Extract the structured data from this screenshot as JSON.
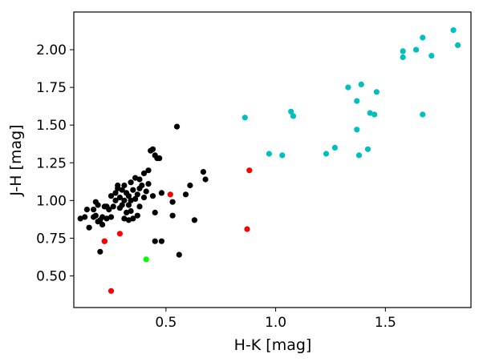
{
  "chart_data": {
    "type": "scatter",
    "title": "",
    "xlabel": "H-K [mag]",
    "ylabel": "J-H [mag]",
    "xlim": [
      0.08,
      1.89
    ],
    "ylim": [
      0.29,
      2.25
    ],
    "xticks": [
      0.5,
      1.0,
      1.5
    ],
    "xtick_labels": [
      "0.5",
      "1.0",
      "1.5"
    ],
    "yticks": [
      0.5,
      0.75,
      1.0,
      1.25,
      1.5,
      1.75,
      2.0
    ],
    "ytick_labels": [
      "0.50",
      "0.75",
      "1.00",
      "1.25",
      "1.50",
      "1.75",
      "2.00"
    ],
    "grid": false,
    "legend": "none",
    "series": [
      {
        "color": "#000000",
        "points": [
          [
            0.11,
            0.88
          ],
          [
            0.13,
            0.89
          ],
          [
            0.14,
            0.94
          ],
          [
            0.15,
            0.82
          ],
          [
            0.17,
            0.89
          ],
          [
            0.17,
            0.94
          ],
          [
            0.18,
            0.9
          ],
          [
            0.18,
            0.99
          ],
          [
            0.19,
            0.97
          ],
          [
            0.19,
            0.86
          ],
          [
            0.2,
            0.87
          ],
          [
            0.2,
            0.66
          ],
          [
            0.21,
            0.89
          ],
          [
            0.21,
            0.84
          ],
          [
            0.22,
            0.73
          ],
          [
            0.22,
            0.96
          ],
          [
            0.23,
            0.96
          ],
          [
            0.23,
            0.88
          ],
          [
            0.24,
            0.94
          ],
          [
            0.25,
            1.03
          ],
          [
            0.25,
            0.89
          ],
          [
            0.26,
            0.96
          ],
          [
            0.27,
            1.0
          ],
          [
            0.27,
            1.05
          ],
          [
            0.28,
            1.08
          ],
          [
            0.28,
            1.1
          ],
          [
            0.29,
            0.95
          ],
          [
            0.29,
            1.02
          ],
          [
            0.3,
            0.97
          ],
          [
            0.3,
            1.07
          ],
          [
            0.31,
            0.88
          ],
          [
            0.31,
            1.0
          ],
          [
            0.31,
            1.1
          ],
          [
            0.32,
            0.92
          ],
          [
            0.32,
            1.05
          ],
          [
            0.33,
            0.87
          ],
          [
            0.33,
            0.97
          ],
          [
            0.33,
            1.03
          ],
          [
            0.34,
            1.0
          ],
          [
            0.34,
            0.93
          ],
          [
            0.34,
            1.12
          ],
          [
            0.35,
            1.07
          ],
          [
            0.35,
            0.88
          ],
          [
            0.36,
            1.15
          ],
          [
            0.36,
            1.01
          ],
          [
            0.37,
            1.04
          ],
          [
            0.37,
            0.9
          ],
          [
            0.38,
            1.14
          ],
          [
            0.38,
            1.08
          ],
          [
            0.38,
            0.96
          ],
          [
            0.39,
            1.1
          ],
          [
            0.4,
            1.18
          ],
          [
            0.4,
            1.02
          ],
          [
            0.41,
            1.06
          ],
          [
            0.42,
            1.11
          ],
          [
            0.42,
            1.2
          ],
          [
            0.43,
            1.33
          ],
          [
            0.44,
            1.34
          ],
          [
            0.44,
            1.03
          ],
          [
            0.45,
            1.3
          ],
          [
            0.45,
            0.73
          ],
          [
            0.45,
            0.92
          ],
          [
            0.46,
            1.28
          ],
          [
            0.47,
            1.28
          ],
          [
            0.48,
            0.73
          ],
          [
            0.48,
            1.05
          ],
          [
            0.53,
            0.9
          ],
          [
            0.53,
            0.99
          ],
          [
            0.55,
            1.49
          ],
          [
            0.56,
            0.64
          ],
          [
            0.59,
            1.04
          ],
          [
            0.61,
            1.1
          ],
          [
            0.63,
            0.87
          ],
          [
            0.67,
            1.19
          ],
          [
            0.68,
            1.14
          ]
        ]
      },
      {
        "color": "#ff0000",
        "points": [
          [
            0.22,
            0.73
          ],
          [
            0.25,
            0.4
          ],
          [
            0.29,
            0.78
          ],
          [
            0.52,
            1.04
          ],
          [
            0.87,
            0.81
          ],
          [
            0.88,
            1.2
          ]
        ]
      },
      {
        "color": "#00ff00",
        "points": [
          [
            0.41,
            0.61
          ]
        ]
      },
      {
        "color": "#00bfbf",
        "points": [
          [
            0.86,
            1.55
          ],
          [
            0.97,
            1.31
          ],
          [
            1.03,
            1.3
          ],
          [
            1.07,
            1.59
          ],
          [
            1.08,
            1.56
          ],
          [
            1.23,
            1.31
          ],
          [
            1.27,
            1.35
          ],
          [
            1.33,
            1.75
          ],
          [
            1.37,
            1.66
          ],
          [
            1.37,
            1.47
          ],
          [
            1.38,
            1.3
          ],
          [
            1.39,
            1.77
          ],
          [
            1.42,
            1.34
          ],
          [
            1.43,
            1.58
          ],
          [
            1.45,
            1.57
          ],
          [
            1.46,
            1.72
          ],
          [
            1.58,
            1.99
          ],
          [
            1.58,
            1.95
          ],
          [
            1.64,
            2.0
          ],
          [
            1.67,
            2.08
          ],
          [
            1.67,
            1.57
          ],
          [
            1.71,
            1.96
          ],
          [
            1.81,
            2.13
          ],
          [
            1.83,
            2.03
          ]
        ]
      }
    ]
  }
}
